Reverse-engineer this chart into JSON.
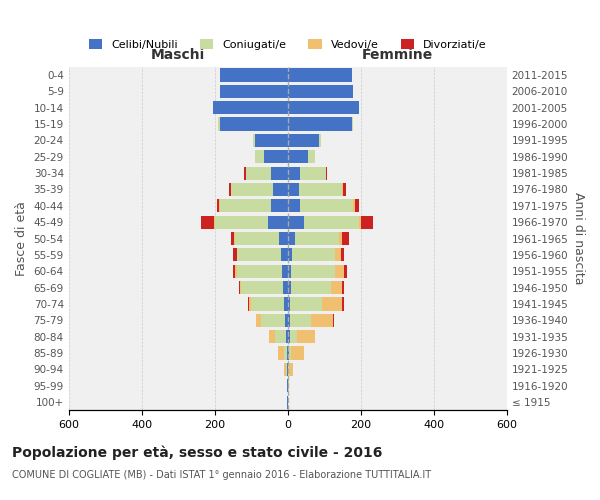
{
  "age_groups": [
    "100+",
    "95-99",
    "90-94",
    "85-89",
    "80-84",
    "75-79",
    "70-74",
    "65-69",
    "60-64",
    "55-59",
    "50-54",
    "45-49",
    "40-44",
    "35-39",
    "30-34",
    "25-29",
    "20-24",
    "15-19",
    "10-14",
    "5-9",
    "0-4"
  ],
  "birth_years": [
    "≤ 1915",
    "1916-1920",
    "1921-1925",
    "1926-1930",
    "1931-1935",
    "1936-1940",
    "1941-1945",
    "1946-1950",
    "1951-1955",
    "1956-1960",
    "1961-1965",
    "1966-1970",
    "1971-1975",
    "1976-1980",
    "1981-1985",
    "1986-1990",
    "1991-1995",
    "1996-2000",
    "2001-2005",
    "2006-2010",
    "2011-2015"
  ],
  "maschi_celibe": [
    1,
    1,
    2,
    3,
    5,
    8,
    10,
    12,
    15,
    18,
    25,
    55,
    45,
    40,
    45,
    65,
    90,
    185,
    205,
    185,
    185
  ],
  "maschi_coniugato": [
    0,
    0,
    2,
    8,
    30,
    65,
    90,
    115,
    125,
    120,
    120,
    145,
    140,
    115,
    70,
    25,
    5,
    5,
    0,
    0,
    0
  ],
  "maschi_vedovo": [
    0,
    1,
    5,
    15,
    15,
    15,
    5,
    5,
    3,
    2,
    2,
    3,
    2,
    1,
    0,
    0,
    0,
    0,
    0,
    0,
    0
  ],
  "maschi_divorziato": [
    0,
    0,
    0,
    0,
    0,
    0,
    5,
    2,
    8,
    10,
    8,
    35,
    8,
    5,
    5,
    0,
    0,
    0,
    0,
    0,
    0
  ],
  "femmine_celibe": [
    0,
    1,
    2,
    4,
    5,
    5,
    5,
    8,
    10,
    12,
    20,
    45,
    35,
    30,
    35,
    55,
    85,
    175,
    195,
    180,
    175
  ],
  "femmine_coniugato": [
    0,
    0,
    2,
    5,
    20,
    60,
    90,
    110,
    120,
    118,
    120,
    150,
    145,
    120,
    70,
    20,
    5,
    5,
    0,
    0,
    0
  ],
  "femmine_vedovo": [
    1,
    3,
    10,
    35,
    50,
    60,
    55,
    30,
    25,
    15,
    10,
    5,
    5,
    2,
    1,
    0,
    0,
    0,
    0,
    0,
    0
  ],
  "femmine_divorziato": [
    0,
    0,
    0,
    0,
    0,
    2,
    5,
    5,
    8,
    10,
    18,
    35,
    10,
    8,
    2,
    0,
    0,
    0,
    0,
    0,
    0
  ],
  "colors": {
    "celibe": "#4472c4",
    "coniugato": "#c8dba0",
    "vedovo": "#f0c070",
    "divorziato": "#cc2222"
  },
  "xlim": 600,
  "title": "Popolazione per età, sesso e stato civile - 2016",
  "subtitle": "COMUNE DI COGLIATE (MB) - Dati ISTAT 1° gennaio 2016 - Elaborazione TUTTITALIA.IT",
  "ylabel_left": "Fasce di età",
  "ylabel_right": "Anni di nascita",
  "xlabel_left": "Maschi",
  "xlabel_right": "Femmine",
  "bg_color": "#f0f0f0",
  "grid_color": "#cccccc",
  "legend_labels": [
    "Celibi/Nubili",
    "Coniugati/e",
    "Vedovi/e",
    "Divorziati/e"
  ]
}
